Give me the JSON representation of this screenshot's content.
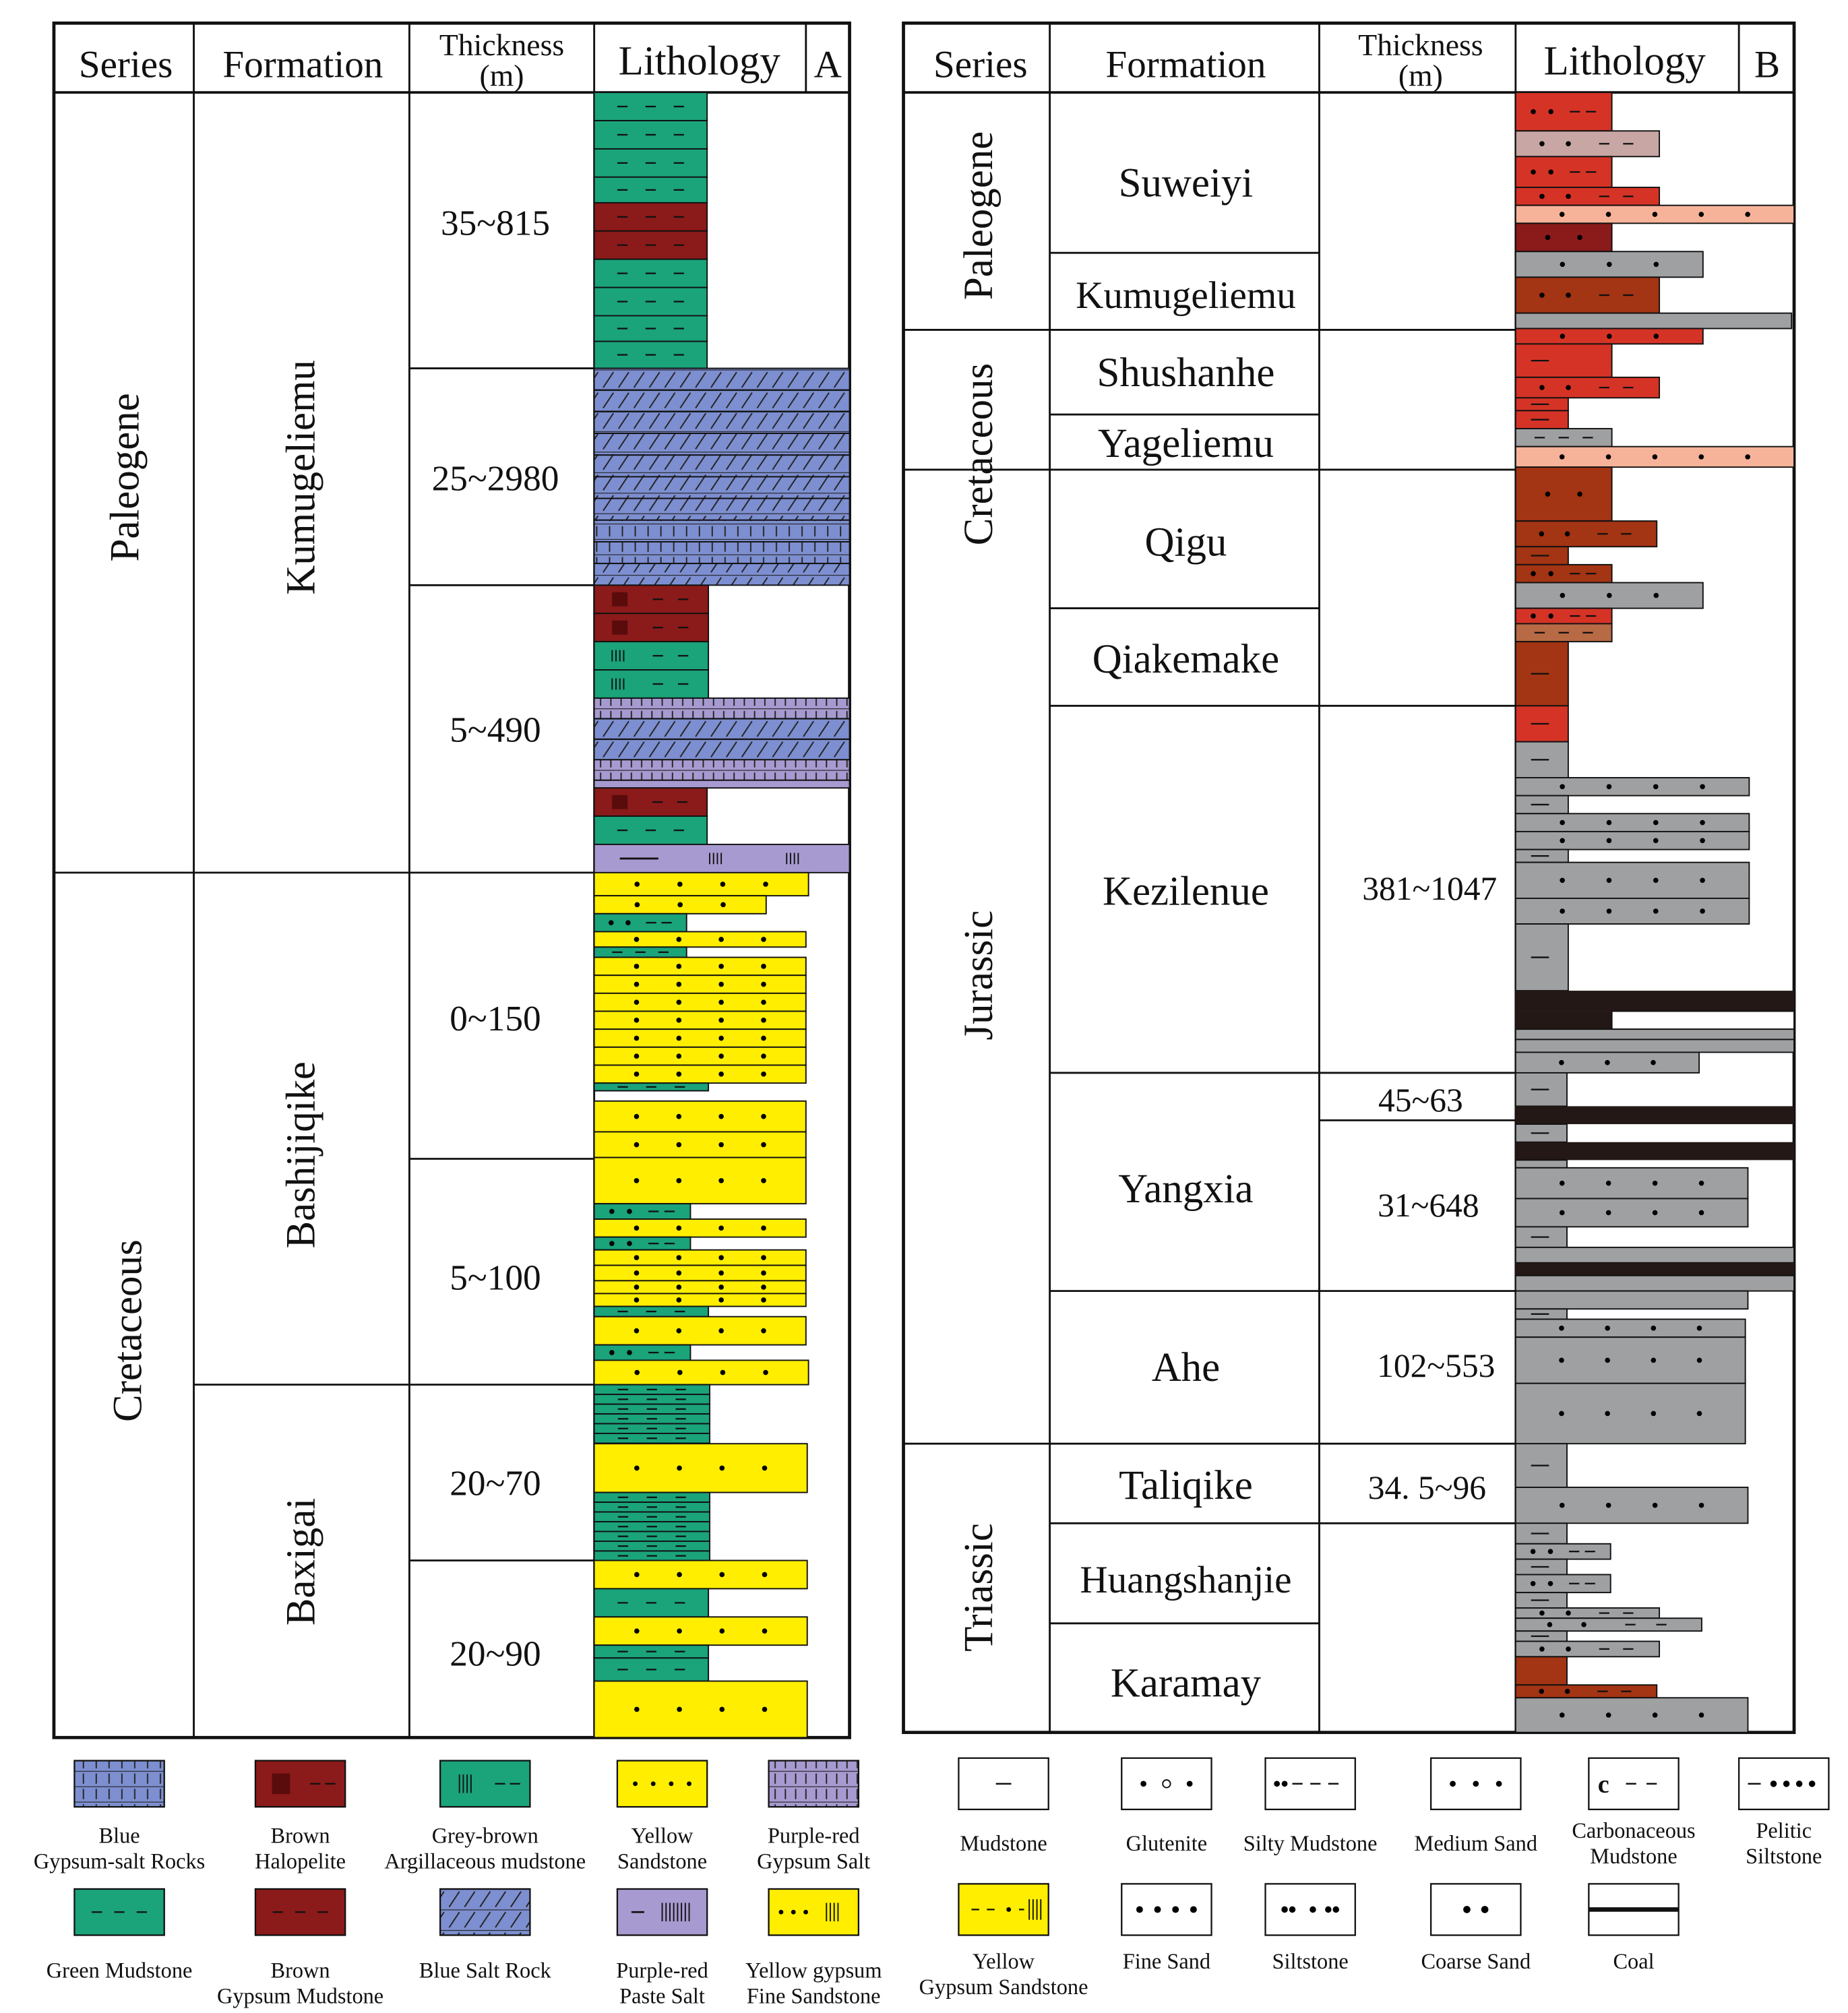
{
  "colors": {
    "green": "#1ba37a",
    "brown_red": "#a3151b",
    "dark_brown": "#8b1a1a",
    "blue": "#7d8fd0",
    "purple": "#a79ad0",
    "yellow": "#ffee00",
    "red": "#d63327",
    "rust": "#a33414",
    "pink": "#f6b39a",
    "mauve": "#c8a6a4",
    "grey": "#9ea0a2",
    "black": "#231815",
    "orange_brown": "#b86a45"
  },
  "panel_a": {
    "headers": {
      "series": "Series",
      "formation": "Formation",
      "thickness_1": "Thickness",
      "thickness_2": "(m)",
      "lithology": "Lithology",
      "tag": "A"
    },
    "series": [
      "Paleogene",
      "Cretaceous"
    ],
    "formations": [
      "Kumugeliemu",
      "Bashijiqike",
      "Baxigai"
    ],
    "thickness": [
      "35~815",
      "25~2980",
      "5~490",
      "0~150",
      "5~100",
      "20~70",
      "20~90"
    ],
    "beds": [
      {
        "pattern": "green-mudstone",
        "width_class": "short"
      },
      {
        "pattern": "brown-gypsum-mudstone",
        "width_class": "short"
      },
      {
        "pattern": "blue-gypsum-salt-rocks",
        "width_class": "full"
      },
      {
        "pattern": "brown-halopelite",
        "width_class": "short"
      },
      {
        "pattern": "grey-brown-argillaceous-mudstone",
        "width_class": "short"
      },
      {
        "pattern": "purple-red-gypsum-salt",
        "width_class": "full"
      },
      {
        "pattern": "purple-red-paste-salt",
        "width_class": "full"
      },
      {
        "pattern": "yellow-gypsum-fine-sandstone",
        "width_class": "long"
      },
      {
        "pattern": "yellow-sandstone",
        "width_class": "long"
      }
    ]
  },
  "panel_b": {
    "headers": {
      "series": "Series",
      "formation": "Formation",
      "thickness_1": "Thickness",
      "thickness_2": "(m)",
      "lithology": "Lithology",
      "tag": "B"
    },
    "series": [
      "Paleogene",
      "Cretaceous",
      "Jurassic",
      "Triassic"
    ],
    "formations": [
      "Suweiyi",
      "Kumugeliemu",
      "Shushanhe",
      "Yageliemu",
      "Qigu",
      "Qiakemake",
      "Kezilenue",
      "Yangxia",
      "Ahe",
      "Taliqike",
      "Huangshanjie",
      "Karamay"
    ],
    "thickness": [
      "381~1047",
      "45~63",
      "31~648",
      "102~553",
      "34. 5~96"
    ]
  },
  "legend_a": [
    {
      "line1": "Blue",
      "line2": "Gypsum-salt Rocks",
      "pattern": "blue-gypsum-salt"
    },
    {
      "line1": "Brown",
      "line2": "Halopelite",
      "pattern": "brown-halopelite"
    },
    {
      "line1": "Grey-brown",
      "line2": "Argillaceous mudstone",
      "pattern": "grey-brown-argillaceous"
    },
    {
      "line1": "Yellow",
      "line2": "Sandstone",
      "pattern": "yellow-sandstone"
    },
    {
      "line1": "Purple-red",
      "line2": "Gypsum Salt",
      "pattern": "purple-red-gypsum-salt"
    },
    {
      "line1": "",
      "line2": "Green Mudstone",
      "pattern": "green-mudstone"
    },
    {
      "line1": "Brown",
      "line2": "Gypsum Mudstone",
      "pattern": "brown-gypsum-mudstone"
    },
    {
      "line1": "",
      "line2": "Blue Salt Rock",
      "pattern": "blue-salt-rock"
    },
    {
      "line1": "Purple-red",
      "line2": "Paste Salt",
      "pattern": "purple-red-paste-salt"
    },
    {
      "line1": "Yellow gypsum",
      "line2": "Fine Sandstone",
      "pattern": "yellow-gypsum-fine-sandstone"
    }
  ],
  "legend_b": [
    {
      "line1": "",
      "line2": "Mudstone",
      "pattern": "mudstone"
    },
    {
      "line1": "",
      "line2": "Glutenite",
      "pattern": "glutenite"
    },
    {
      "line1": "",
      "line2": "Silty Mudstone",
      "pattern": "silty-mudstone"
    },
    {
      "line1": "",
      "line2": "Medium  Sand",
      "pattern": "medium-sand"
    },
    {
      "line1": "Carbonaceous",
      "line2": "Mudstone",
      "pattern": "carbonaceous-mudstone"
    },
    {
      "line1": "Pelitic",
      "line2": "Siltstone",
      "pattern": "pelitic-siltstone"
    },
    {
      "line1": "Yellow",
      "line2": "Gypsum Sandstone",
      "pattern": "yellow-gypsum-sandstone"
    },
    {
      "line1": "",
      "line2": "Fine  Sand",
      "pattern": "fine-sand"
    },
    {
      "line1": "",
      "line2": "Siltstone",
      "pattern": "siltstone"
    },
    {
      "line1": "",
      "line2": "Coarse Sand",
      "pattern": "coarse-sand"
    },
    {
      "line1": "",
      "line2": "Coal",
      "pattern": "coal"
    }
  ]
}
